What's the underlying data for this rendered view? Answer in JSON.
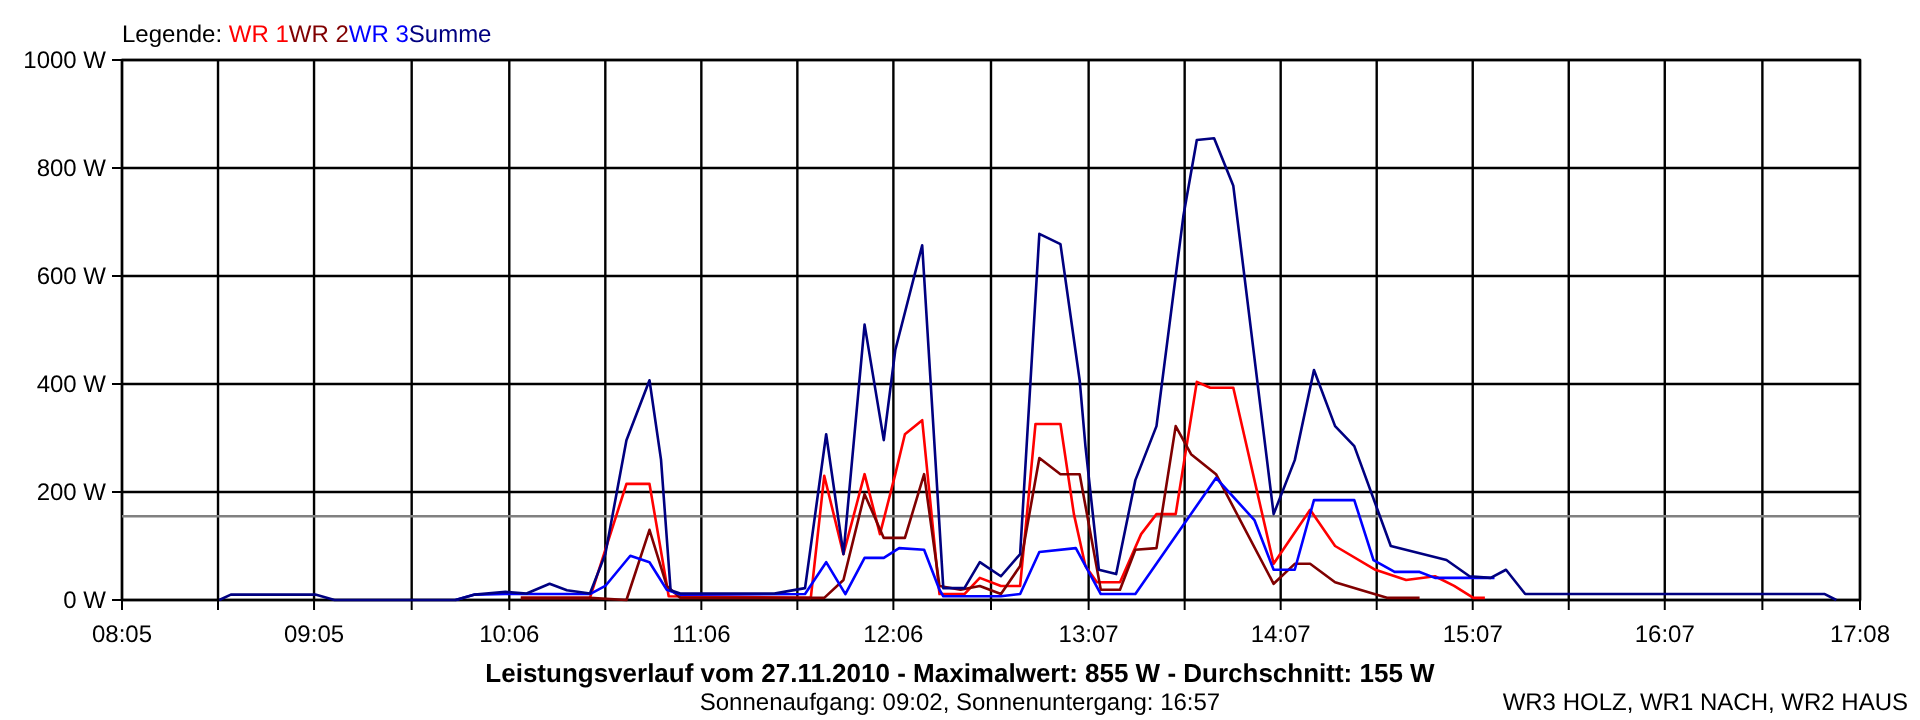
{
  "chart_data": {
    "type": "line",
    "title": "Leistungsverlauf vom 27.11.2010 - Maximalwert: 855 W - Durchschnitt: 155 W",
    "subtitle": "Sonnenaufgang: 09:02, Sonnenuntergang: 16:57",
    "annotations": [
      "WR3 HOLZ, WR1 NACH, WR2 HAUS"
    ],
    "legend_title": "Legende:",
    "legend": "top left",
    "grid": true,
    "xlim": [
      8.0833,
      17.1333
    ],
    "xticks": [
      {
        "value": 8.0833,
        "label": "08:05"
      },
      {
        "value": 8.5833,
        "label": null
      },
      {
        "value": 9.0833,
        "label": "09:05"
      },
      {
        "value": 9.5917,
        "label": null
      },
      {
        "value": 10.1,
        "label": "10:06"
      },
      {
        "value": 10.6,
        "label": null
      },
      {
        "value": 11.1,
        "label": "11:06"
      },
      {
        "value": 11.6,
        "label": null
      },
      {
        "value": 12.1,
        "label": "12:06"
      },
      {
        "value": 12.6083,
        "label": null
      },
      {
        "value": 13.1167,
        "label": "13:07"
      },
      {
        "value": 13.6167,
        "label": null
      },
      {
        "value": 14.1167,
        "label": "14:07"
      },
      {
        "value": 14.6167,
        "label": null
      },
      {
        "value": 15.1167,
        "label": "15:07"
      },
      {
        "value": 15.6167,
        "label": null
      },
      {
        "value": 16.1167,
        "label": "16:07"
      },
      {
        "value": 16.625,
        "label": null
      },
      {
        "value": 17.1333,
        "label": "17:08"
      }
    ],
    "ylim": [
      0,
      1000
    ],
    "yticks": [
      {
        "value": 0,
        "label": "0 W"
      },
      {
        "value": 200,
        "label": "200 W"
      },
      {
        "value": 400,
        "label": "400 W"
      },
      {
        "value": 600,
        "label": "600 W"
      },
      {
        "value": 800,
        "label": "800 W"
      },
      {
        "value": 1000,
        "label": "1000 W"
      }
    ],
    "ref_lines": [
      {
        "axis": "y",
        "value": 155,
        "color": "#808080"
      }
    ],
    "series": [
      {
        "name": "WR 1",
        "color": "#ff0000",
        "x": [
          10.16,
          10.52,
          10.71,
          10.83,
          10.93,
          11.67,
          11.74,
          11.84,
          11.95,
          12.03,
          12.11,
          12.16,
          12.25,
          12.34,
          12.47,
          12.55,
          12.66,
          12.76,
          12.84,
          12.97,
          13.04,
          13.1,
          13.16,
          13.28,
          13.39,
          13.47,
          13.57,
          13.68,
          13.75,
          13.87,
          14.08,
          14.27,
          14.4,
          14.61,
          14.77,
          14.92,
          15.02,
          15.12,
          15.18
        ],
        "values": [
          4,
          4,
          215,
          215,
          7,
          4,
          230,
          85,
          233,
          122,
          233,
          307,
          333,
          11,
          11,
          41,
          26,
          26,
          326,
          326,
          159,
          63,
          33,
          33,
          122,
          159,
          159,
          404,
          393,
          393,
          67,
          167,
          100,
          56,
          37,
          44,
          26,
          4,
          4
        ]
      },
      {
        "name": "WR 2",
        "color": "#800000",
        "x": [
          10.16,
          10.52,
          10.71,
          10.83,
          10.92,
          10.99,
          11.74,
          11.84,
          11.95,
          12.05,
          12.16,
          12.26,
          12.34,
          12.45,
          12.55,
          12.66,
          12.76,
          12.86,
          12.97,
          13.07,
          13.18,
          13.28,
          13.36,
          13.47,
          13.57,
          13.65,
          13.78,
          14.08,
          14.19,
          14.27,
          14.4,
          14.53,
          14.67,
          14.84
        ],
        "values": [
          4,
          4,
          0,
          130,
          26,
          4,
          4,
          37,
          196,
          115,
          115,
          233,
          26,
          19,
          26,
          11,
          63,
          263,
          233,
          233,
          19,
          19,
          93,
          96,
          322,
          270,
          233,
          30,
          67,
          67,
          33,
          19,
          4,
          4
        ]
      },
      {
        "name": "WR 3",
        "color": "#0000ff",
        "x": [
          9.82,
          9.92,
          10.08,
          10.52,
          10.6,
          10.73,
          10.83,
          10.92,
          10.99,
          11.64,
          11.75,
          11.85,
          11.95,
          12.05,
          12.13,
          12.26,
          12.34,
          12.36,
          12.66,
          12.76,
          12.86,
          13.05,
          13.18,
          13.36,
          13.78,
          13.98,
          14.08,
          14.19,
          14.29,
          14.5,
          14.6,
          14.71,
          14.84,
          14.92,
          15.23
        ],
        "values": [
          0,
          10,
          11,
          11,
          26,
          82,
          70,
          19,
          10,
          11,
          70,
          11,
          78,
          78,
          96,
          93,
          19,
          7,
          7,
          11,
          89,
          96,
          11,
          11,
          226,
          148,
          56,
          56,
          185,
          185,
          74,
          52,
          52,
          41,
          41
        ]
      },
      {
        "name": "Summe",
        "color": "#000080",
        "x": [
          8.59,
          8.65,
          9.09,
          9.19,
          9.82,
          9.92,
          10.08,
          10.19,
          10.31,
          10.4,
          10.52,
          10.6,
          10.71,
          10.83,
          10.89,
          10.94,
          10.99,
          11.48,
          11.53,
          11.64,
          11.75,
          11.84,
          11.95,
          12.05,
          12.11,
          12.25,
          12.36,
          12.47,
          12.55,
          12.66,
          12.76,
          12.86,
          12.97,
          13.07,
          13.1,
          13.17,
          13.26,
          13.36,
          13.47,
          13.61,
          13.68,
          13.77,
          13.87,
          14.08,
          14.19,
          14.29,
          14.4,
          14.5,
          14.69,
          14.98,
          15.1,
          15.21,
          15.29,
          15.39,
          16.95,
          17.01
        ],
        "values": [
          0,
          10,
          10,
          0,
          0,
          10,
          15,
          12,
          30,
          18,
          12,
          85,
          296,
          407,
          260,
          18,
          12,
          12,
          15,
          22,
          307,
          85,
          510,
          296,
          463,
          657,
          22,
          22,
          70,
          44,
          85,
          678,
          659,
          407,
          285,
          56,
          48,
          222,
          322,
          711,
          852,
          855,
          767,
          159,
          259,
          426,
          322,
          285,
          100,
          74,
          44,
          41,
          56,
          11,
          11,
          0
        ]
      }
    ]
  }
}
